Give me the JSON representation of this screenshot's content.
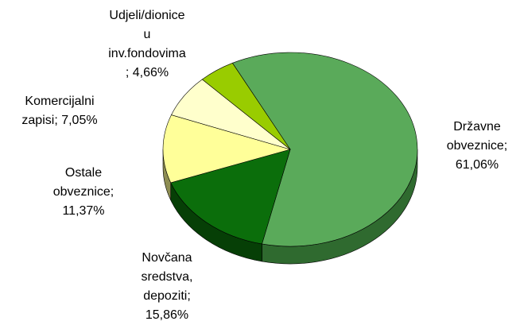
{
  "chart_data": {
    "type": "pie",
    "labels": [
      "Državne obveznice; 61,06%",
      "Novčana sredstva, depoziti; 15,86%",
      "Ostale obveznice; 11,37%",
      "Komercijalni zapisi; 7,05%",
      "Udjeli/dionice u inv.fondovima ; 4,66%"
    ],
    "values": [
      61.06,
      15.86,
      11.37,
      7.05,
      4.66
    ],
    "colors": [
      "#5aaa5a",
      "#0b6e0b",
      "#ffff99",
      "#ffffcc",
      "#99cc00"
    ],
    "side_colors": [
      "#2f6a2f",
      "#063f06",
      "#8d8d52",
      "#9a9a70",
      "#5c7a00"
    ]
  }
}
